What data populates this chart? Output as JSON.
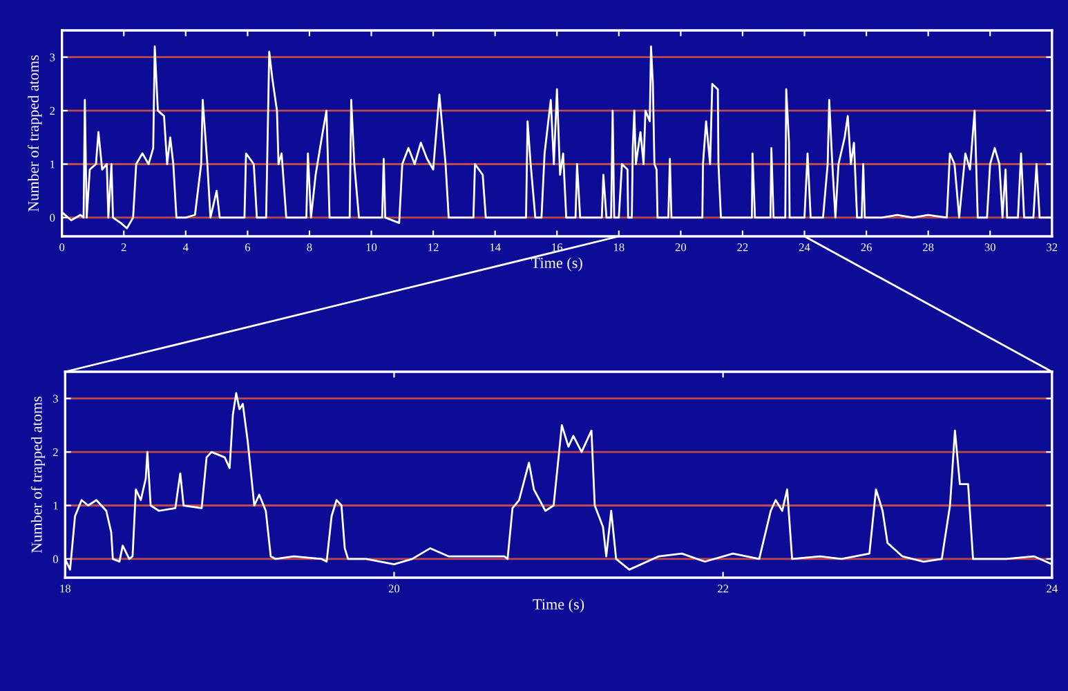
{
  "chart_data": [
    {
      "type": "line",
      "xlabel": "Time (s)",
      "ylabel": "Number of trapped atoms",
      "xlim": [
        0,
        32
      ],
      "xticks": [
        0,
        2,
        4,
        6,
        8,
        10,
        12,
        14,
        16,
        18,
        20,
        22,
        24,
        26,
        28,
        30,
        32
      ],
      "ylim": [
        -0.35,
        3.5
      ],
      "yticks": [
        0,
        1,
        2,
        3
      ],
      "grid": "y",
      "marker": "none",
      "line_style": "solid",
      "series": [
        {
          "color": "#ffffff",
          "x": [
            0,
            0.3,
            0.6,
            0.7,
            0.74,
            0.8,
            0.9,
            1.1,
            1.18,
            1.3,
            1.45,
            1.5,
            1.6,
            1.65,
            1.9,
            2.1,
            2.3,
            2.4,
            2.6,
            2.8,
            2.95,
            3.0,
            3.1,
            3.3,
            3.4,
            3.5,
            3.6,
            3.7,
            4.0,
            4.3,
            4.5,
            4.55,
            4.7,
            4.8,
            5.0,
            5.1,
            5.5,
            5.9,
            5.95,
            6.2,
            6.3,
            6.6,
            6.7,
            6.8,
            6.95,
            7.0,
            7.1,
            7.25,
            7.6,
            7.9,
            7.95,
            8.05,
            8.2,
            8.4,
            8.55,
            8.65,
            9.0,
            9.3,
            9.35,
            9.45,
            9.6,
            10.0,
            10.35,
            10.4,
            10.45,
            10.9,
            11.0,
            11.2,
            11.4,
            11.6,
            11.8,
            12.0,
            12.2,
            12.4,
            12.5,
            12.9,
            13.3,
            13.35,
            13.6,
            13.7,
            14.2,
            14.6,
            15.0,
            15.05,
            15.15,
            15.3,
            15.5,
            15.6,
            15.8,
            15.9,
            16.0,
            16.1,
            16.2,
            16.3,
            16.6,
            16.65,
            16.75,
            17.2,
            17.45,
            17.5,
            17.6,
            17.75,
            17.8,
            17.85,
            18.0,
            18.1,
            18.28,
            18.3,
            18.42,
            18.45,
            18.5,
            18.55,
            18.7,
            18.8,
            18.86,
            19.0,
            19.04,
            19.1,
            19.15,
            19.22,
            19.25,
            19.6,
            19.65,
            19.7,
            20.7,
            20.72,
            20.82,
            20.95,
            21.02,
            21.2,
            21.22,
            21.3,
            22.3,
            22.32,
            22.4,
            22.9,
            22.93,
            23.0,
            23.38,
            23.41,
            23.5,
            23.52,
            24.0,
            24.1,
            24.2,
            24.6,
            24.75,
            24.8,
            24.9,
            25.0,
            25.1,
            25.3,
            25.4,
            25.5,
            25.6,
            25.7,
            25.85,
            25.9,
            25.95,
            26.5,
            27.0,
            27.5,
            28.0,
            28.6,
            28.7,
            28.85,
            29.0,
            29.2,
            29.35,
            29.5,
            29.6,
            29.9,
            30.0,
            30.15,
            30.3,
            30.4,
            30.5,
            30.55,
            30.9,
            31.0,
            31.1,
            31.4,
            31.5,
            31.6,
            32.0
          ],
          "values": [
            0.1,
            -0.05,
            0.05,
            0,
            2.2,
            0,
            0.9,
            1.0,
            1.6,
            0.9,
            1.0,
            0,
            1.0,
            0,
            -0.1,
            -0.2,
            0,
            1.0,
            1.2,
            1.0,
            1.3,
            3.2,
            2.0,
            1.9,
            1.0,
            1.5,
            1.0,
            0,
            0,
            0.05,
            1.0,
            2.2,
            1.0,
            0,
            0.5,
            0,
            0,
            0,
            1.2,
            1.0,
            0,
            0,
            3.1,
            2.6,
            2.0,
            1.0,
            1.2,
            0,
            0,
            0,
            1.2,
            0,
            0.8,
            1.5,
            2.0,
            0,
            0,
            0,
            2.2,
            1.0,
            0,
            0,
            0,
            1.1,
            0,
            -0.1,
            1.0,
            1.3,
            1.0,
            1.4,
            1.1,
            0.9,
            2.3,
            1.0,
            0,
            0,
            0,
            1.0,
            0.8,
            0,
            0,
            0,
            0,
            1.8,
            1.0,
            0,
            0,
            1.2,
            2.2,
            1.0,
            2.4,
            0.8,
            1.2,
            0,
            0,
            1.0,
            0,
            0,
            0,
            0.8,
            0,
            0,
            2.0,
            0,
            0,
            1.0,
            0.9,
            0,
            0,
            1.3,
            2.0,
            1.0,
            1.6,
            1.0,
            2.0,
            1.8,
            3.2,
            2.5,
            1.0,
            0.9,
            0,
            0,
            1.1,
            0,
            0,
            1.0,
            1.8,
            1.0,
            2.5,
            2.4,
            1.0,
            0,
            0,
            1.2,
            0,
            0,
            1.3,
            0,
            0,
            2.4,
            1.4,
            0,
            0,
            1.2,
            0,
            0,
            1.0,
            2.2,
            1.0,
            0,
            1.0,
            1.5,
            1.9,
            1.0,
            1.4,
            0,
            0,
            1.0,
            0,
            0,
            0.05,
            0,
            0.05,
            0,
            1.2,
            1.0,
            0,
            1.2,
            0.9,
            2.0,
            0,
            0,
            1.0,
            1.3,
            1.0,
            0,
            0.9,
            0,
            0,
            1.2,
            0,
            0,
            1.0,
            0,
            0
          ]
        }
      ]
    },
    {
      "type": "line",
      "xlabel": "Time (s)",
      "ylabel": "Number of trapped atoms",
      "xlim": [
        18,
        24
      ],
      "xticks": [
        18,
        20,
        22,
        24
      ],
      "ylim": [
        -0.35,
        3.5
      ],
      "yticks": [
        0,
        1,
        2,
        3
      ],
      "grid": "y",
      "marker": "none",
      "line_style": "solid",
      "series": [
        {
          "color": "#ffffff",
          "x": [
            18.0,
            18.03,
            18.06,
            18.1,
            18.14,
            18.19,
            18.25,
            18.28,
            18.29,
            18.33,
            18.35,
            18.39,
            18.41,
            18.43,
            18.46,
            18.49,
            18.5,
            18.52,
            18.57,
            18.67,
            18.7,
            18.72,
            18.83,
            18.86,
            18.89,
            18.97,
            19.0,
            19.02,
            19.04,
            19.06,
            19.08,
            19.11,
            19.15,
            19.18,
            19.22,
            19.25,
            19.28,
            19.39,
            19.56,
            19.59,
            19.62,
            19.65,
            19.68,
            19.7,
            19.72,
            19.83,
            20.0,
            20.11,
            20.22,
            20.33,
            20.5,
            20.67,
            20.69,
            20.72,
            20.76,
            20.82,
            20.85,
            20.92,
            20.97,
            21.02,
            21.06,
            21.09,
            21.14,
            21.2,
            21.22,
            21.27,
            21.29,
            21.32,
            21.35,
            21.43,
            21.61,
            21.75,
            21.89,
            22.06,
            22.22,
            22.29,
            22.32,
            22.36,
            22.39,
            22.42,
            22.59,
            22.72,
            22.89,
            22.93,
            22.97,
            23.0,
            23.09,
            23.22,
            23.33,
            23.38,
            23.41,
            23.44,
            23.49,
            23.52,
            23.72,
            23.89,
            24.0
          ],
          "values": [
            0,
            -0.2,
            0.8,
            1.1,
            1.0,
            1.1,
            0.9,
            0.5,
            0,
            -0.05,
            0.25,
            0,
            0.05,
            1.3,
            1.1,
            1.5,
            2.0,
            1.0,
            0.9,
            0.95,
            1.6,
            1.0,
            0.95,
            1.9,
            2.0,
            1.9,
            1.7,
            2.7,
            3.1,
            2.8,
            2.9,
            2.2,
            1.0,
            1.2,
            0.9,
            0.05,
            0,
            0.05,
            0,
            -0.05,
            0.8,
            1.1,
            1.0,
            0.2,
            0,
            0,
            -0.1,
            0,
            0.2,
            0.05,
            0.05,
            0.05,
            0,
            0.95,
            1.1,
            1.8,
            1.3,
            0.9,
            1.0,
            2.5,
            2.1,
            2.3,
            2.0,
            2.4,
            1.0,
            0.6,
            0.05,
            0.9,
            0,
            -0.2,
            0.05,
            0.1,
            -0.05,
            0.1,
            0,
            0.9,
            1.1,
            0.9,
            1.3,
            0,
            0.05,
            0,
            0.1,
            1.3,
            0.9,
            0.3,
            0.05,
            -0.05,
            0,
            1.0,
            2.4,
            1.4,
            1.4,
            0,
            0,
            0.05,
            -0.1
          ]
        }
      ]
    }
  ]
}
